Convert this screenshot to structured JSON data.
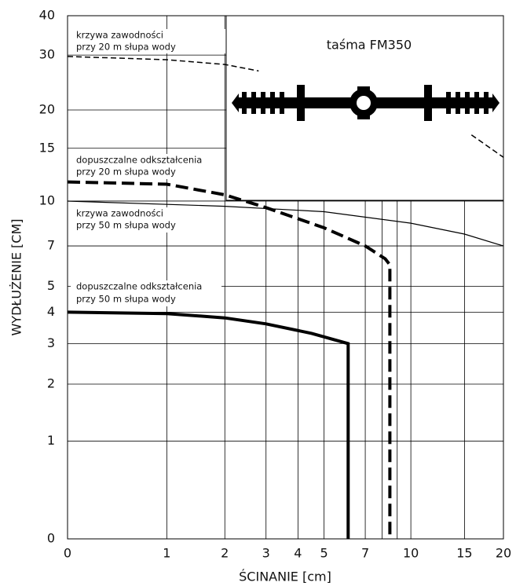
{
  "chart_data": {
    "type": "line",
    "inset_title": "taśma FM350",
    "x_label": "ŚCINANIE   [cm]",
    "y_label": "WYDŁUŻENIE   [CM]",
    "xscale": "log1p",
    "yscale": "log1p",
    "xlim": [
      0,
      20
    ],
    "ylim": [
      0,
      40
    ],
    "xticks": [
      0,
      1,
      2,
      3,
      4,
      5,
      7,
      10,
      15,
      20
    ],
    "xminor": [
      8,
      9
    ],
    "yticks": [
      0,
      1,
      2,
      3,
      4,
      5,
      7,
      10,
      15,
      20,
      30,
      40
    ],
    "grid": true,
    "annotations": [
      [
        "krzywa zawodności",
        "przy 20 m słupa wody"
      ],
      [
        "dopuszczalne odkształcenia",
        "przy 20 m słupa wody"
      ],
      [
        "krzywa zawodności",
        "przy 50 m słupa wody"
      ],
      [
        "dopuszczalne odkształcenia",
        "przy 50 m słupa wody"
      ]
    ],
    "series": [
      {
        "color": "#000000",
        "style": "dashed",
        "width": 1.5,
        "x": [
          0,
          1,
          2,
          2.8,
          null,
          15.8,
          20
        ],
        "values": [
          29.7,
          29,
          28,
          26.7,
          null,
          16.6,
          14
        ]
      },
      {
        "color": "#000000",
        "style": "dashed",
        "width": 4,
        "x": [
          0,
          1,
          2,
          3,
          5,
          7,
          8.2,
          8.5,
          8.5
        ],
        "values": [
          11.6,
          11.4,
          10.5,
          9.5,
          8.1,
          7,
          6.3,
          6,
          0
        ]
      },
      {
        "color": "#000000",
        "style": "solid",
        "width": 1.2,
        "x": [
          0,
          2,
          5,
          10,
          15,
          20
        ],
        "values": [
          10,
          9.6,
          9.2,
          8.4,
          7.7,
          7
        ]
      },
      {
        "color": "#000000",
        "style": "solid",
        "width": 4,
        "x": [
          0,
          1,
          2,
          3,
          4.5,
          6.1,
          6.1
        ],
        "values": [
          4,
          3.95,
          3.8,
          3.6,
          3.3,
          3,
          0
        ]
      }
    ]
  }
}
